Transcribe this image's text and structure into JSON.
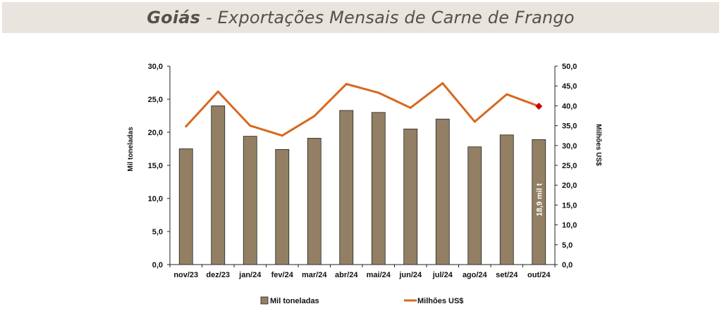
{
  "header": {
    "title_bold": "Goiás",
    "title_rest": " - Exportações Mensais de Carne de Frango"
  },
  "chart_data": {
    "type": "bar",
    "title": "Goiás - Exportações Mensais de Carne de Frango",
    "categories": [
      "nov/23",
      "dez/23",
      "jan/24",
      "fev/24",
      "mar/24",
      "abr/24",
      "mai/24",
      "jun/24",
      "jul/24",
      "ago/24",
      "set/24",
      "out/24"
    ],
    "series": [
      {
        "name": "Mil toneladas",
        "type": "bar",
        "axis": "left",
        "color": "#937f63",
        "values": [
          17.5,
          24.0,
          19.4,
          17.4,
          19.1,
          23.3,
          23.0,
          20.5,
          22.0,
          17.8,
          19.6,
          18.9
        ]
      },
      {
        "name": "Milhões US$",
        "type": "line",
        "axis": "right",
        "color": "#d9671f",
        "values": [
          34.8,
          43.6,
          35.0,
          32.5,
          37.4,
          45.5,
          43.3,
          39.5,
          45.7,
          36.0,
          42.9,
          39.9
        ]
      }
    ],
    "ylabel": "Mil toneladas",
    "ylabel_right": "Milhões US$",
    "ylim": [
      0,
      30
    ],
    "ylim_right": [
      0,
      50
    ],
    "yticks": [
      "0,0",
      "5,0",
      "10,0",
      "15,0",
      "20,0",
      "25,0",
      "30,0"
    ],
    "yticks_right": [
      "0,0",
      "5,0",
      "10,0",
      "15,0",
      "20,0",
      "25,0",
      "30,0",
      "35,0",
      "40,0",
      "45,0",
      "50,0"
    ],
    "annotation": "18,9 mil t",
    "highlight_last_point_color": "#cc0000",
    "legend_position": "bottom",
    "grid": false
  }
}
